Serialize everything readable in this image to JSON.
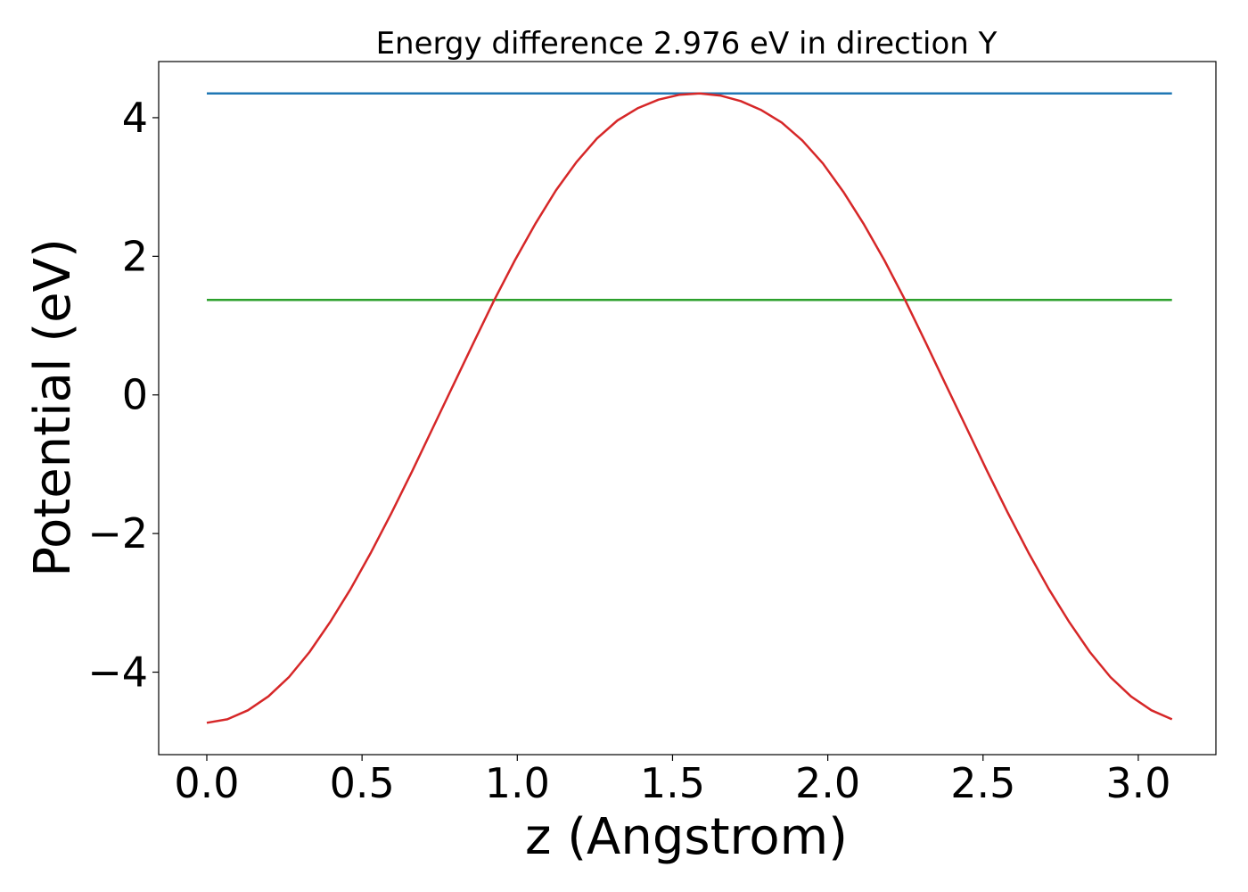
{
  "chart_data": {
    "type": "line",
    "title": "Energy difference 2.976 eV in direction Y",
    "xlabel": "z (Angstrom)",
    "ylabel": "Potential (eV)",
    "xlim": [
      -0.155,
      3.25
    ],
    "ylim": [
      -5.19,
      4.81
    ],
    "xticks": [
      0.0,
      0.5,
      1.0,
      1.5,
      2.0,
      2.5,
      3.0
    ],
    "xtick_labels": [
      "0.0",
      "0.5",
      "1.0",
      "1.5",
      "2.0",
      "2.5",
      "3.0"
    ],
    "yticks": [
      -4,
      -2,
      0,
      2,
      4
    ],
    "ytick_labels": [
      "−4",
      "−2",
      "0",
      "2",
      "4"
    ],
    "grid": false,
    "legend": "none",
    "series": [
      {
        "color": "#d62728",
        "x": [
          0.0,
          0.0661,
          0.1323,
          0.1984,
          0.2646,
          0.3307,
          0.3968,
          0.463,
          0.5291,
          0.5953,
          0.6614,
          0.7275,
          0.7937,
          0.8598,
          0.926,
          0.9921,
          1.0582,
          1.1244,
          1.1905,
          1.2567,
          1.3228,
          1.3889,
          1.4551,
          1.5212,
          1.5874,
          1.6535,
          1.7196,
          1.7858,
          1.8519,
          1.9181,
          1.9842,
          2.0503,
          2.1165,
          2.1826,
          2.2488,
          2.3149,
          2.381,
          2.4472,
          2.5133,
          2.5795,
          2.6456,
          2.7117,
          2.7779,
          2.844,
          2.9102,
          2.9763,
          3.0424,
          3.1086
        ],
        "y": [
          -4.73,
          -4.68,
          -4.55,
          -4.35,
          -4.07,
          -3.71,
          -3.28,
          -2.8,
          -2.27,
          -1.7,
          -1.1,
          -0.48,
          0.14,
          0.76,
          1.37,
          1.94,
          2.47,
          2.95,
          3.36,
          3.7,
          3.96,
          4.14,
          4.26,
          4.33,
          4.35,
          4.32,
          4.24,
          4.11,
          3.93,
          3.67,
          3.34,
          2.93,
          2.46,
          1.94,
          1.37,
          0.76,
          0.14,
          -0.48,
          -1.1,
          -1.7,
          -2.27,
          -2.8,
          -3.28,
          -3.71,
          -4.07,
          -4.35,
          -4.55,
          -4.68
        ]
      },
      {
        "color": "#1f77b4",
        "x": [
          0.0,
          3.1086
        ],
        "y": [
          4.35,
          4.35
        ]
      },
      {
        "color": "#2ca02c",
        "x": [
          0.0,
          3.1086
        ],
        "y": [
          1.37,
          1.37
        ]
      }
    ]
  }
}
